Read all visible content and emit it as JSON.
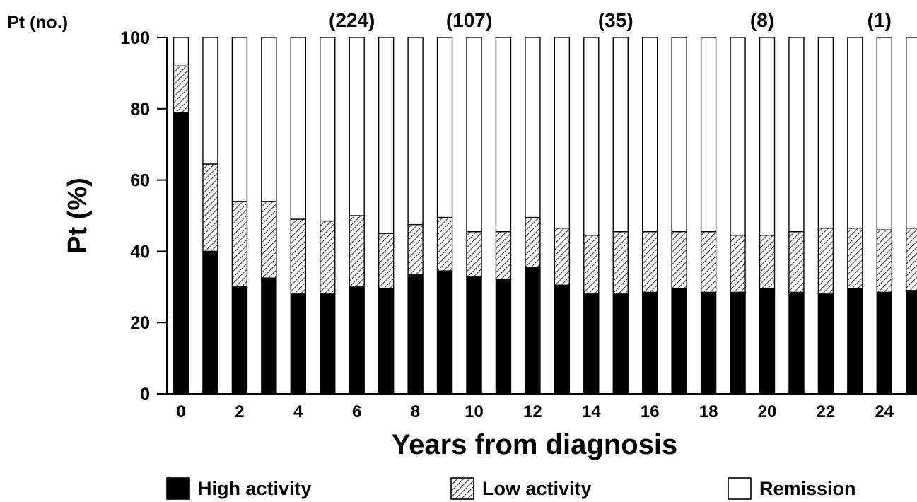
{
  "chart_data": {
    "type": "bar",
    "stacked": true,
    "title": "",
    "xlabel": "Years from diagnosis",
    "ylabel": "Pt (%)",
    "ylim": [
      0,
      100
    ],
    "yticks": [
      "0",
      "20",
      "40",
      "60",
      "80",
      "100"
    ],
    "categories": [
      0,
      1,
      2,
      3,
      4,
      5,
      6,
      7,
      8,
      9,
      10,
      11,
      12,
      13,
      14,
      15,
      16,
      17,
      18,
      19,
      20,
      21,
      22,
      23,
      24,
      25
    ],
    "xtick_labels": [
      {
        "x": 0,
        "label": "0"
      },
      {
        "x": 2,
        "label": "2"
      },
      {
        "x": 4,
        "label": "4"
      },
      {
        "x": 6,
        "label": "6"
      },
      {
        "x": 8,
        "label": "8"
      },
      {
        "x": 10,
        "label": "10"
      },
      {
        "x": 12,
        "label": "12"
      },
      {
        "x": 14,
        "label": "14"
      },
      {
        "x": 16,
        "label": "16"
      },
      {
        "x": 18,
        "label": "18"
      },
      {
        "x": 20,
        "label": "20"
      },
      {
        "x": 22,
        "label": "22"
      },
      {
        "x": 24,
        "label": "24"
      }
    ],
    "series": [
      {
        "name": "High activity",
        "fill": "#000000",
        "values": [
          79,
          40,
          30,
          32.5,
          28,
          28,
          30,
          29.5,
          33.5,
          34.5,
          33,
          32,
          35.5,
          30.5,
          28,
          28,
          28.5,
          29.5,
          28.5,
          28.5,
          29.5,
          28.5,
          28,
          29.5,
          28.5,
          29
        ]
      },
      {
        "name": "Low activity",
        "fill": "hatch",
        "values": [
          13,
          24.5,
          24,
          21.5,
          21,
          20.5,
          20,
          15.5,
          14,
          15,
          12.5,
          13.5,
          14,
          16,
          16.5,
          17.5,
          17,
          16,
          17,
          16,
          15,
          17,
          18.5,
          17,
          17.5,
          17.5
        ]
      },
      {
        "name": "Remission",
        "fill": "#ffffff",
        "values": [
          8,
          35.5,
          46,
          46,
          51,
          51.5,
          50,
          55,
          52.5,
          50.5,
          54.5,
          54.5,
          50.5,
          53.5,
          55.5,
          54.5,
          54.5,
          54.5,
          54.5,
          55.5,
          55.5,
          54.5,
          53.5,
          53.5,
          54,
          53.5
        ]
      }
    ],
    "patient_counts_label": "Pt (no.)",
    "patient_counts": [
      {
        "x": 6,
        "label": "(224)"
      },
      {
        "x": 10,
        "label": "(107)"
      },
      {
        "x": 15,
        "label": "(35)"
      },
      {
        "x": 20,
        "label": "(8)"
      },
      {
        "x": 24,
        "label": "(1)"
      }
    ],
    "legend_position": "bottom",
    "grid": false
  }
}
